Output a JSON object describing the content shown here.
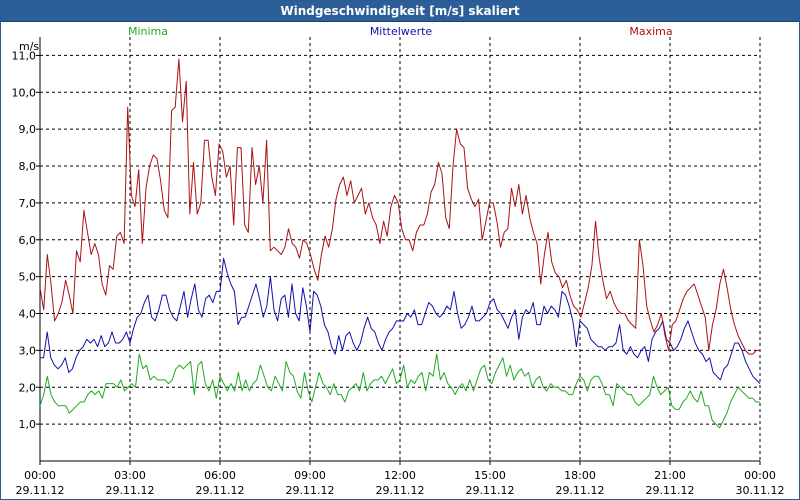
{
  "window": {
    "title": "Windgeschwindigkeit [m/s] skaliert"
  },
  "colors": {
    "minima": "#22aa22",
    "mittelwerte": "#1111aa",
    "maxima": "#aa1111",
    "grid": "#000000",
    "axis_text": "#000000"
  },
  "chart_data": {
    "type": "line",
    "title": "Windgeschwindigkeit [m/s] skaliert",
    "ylabel": "m/s",
    "ylim": [
      0,
      11.5
    ],
    "xlim": [
      0,
      24
    ],
    "yticks": [
      1.0,
      2.0,
      3.0,
      4.0,
      5.0,
      6.0,
      7.0,
      8.0,
      9.0,
      10.0,
      11.0
    ],
    "ytick_labels": [
      "1,0",
      "2,0",
      "3,0",
      "4,0",
      "5,0",
      "6,0",
      "7,0",
      "8,0",
      "9,0",
      "10,0",
      "11,0"
    ],
    "xticks": [
      {
        "hour": 0,
        "time": "00:00",
        "date": "29.11.12"
      },
      {
        "hour": 3,
        "time": "03:00",
        "date": "29.11.12"
      },
      {
        "hour": 6,
        "time": "06:00",
        "date": "29.11.12"
      },
      {
        "hour": 9,
        "time": "09:00",
        "date": "29.11.12"
      },
      {
        "hour": 12,
        "time": "12:00",
        "date": "29.11.12"
      },
      {
        "hour": 15,
        "time": "15:00",
        "date": "29.11.12"
      },
      {
        "hour": 18,
        "time": "18:00",
        "date": "29.11.12"
      },
      {
        "hour": 21,
        "time": "21:00",
        "date": "29.11.12"
      },
      {
        "hour": 24,
        "time": "00:00",
        "date": "30.11.12"
      }
    ],
    "grid": true,
    "step_hours": 0.1667,
    "series": [
      {
        "name": "Minima",
        "key": "minima",
        "values": [
          1.5,
          1.8,
          2.3,
          1.8,
          1.6,
          1.5,
          1.5,
          1.5,
          1.3,
          1.4,
          1.5,
          1.6,
          1.6,
          1.8,
          1.9,
          1.8,
          1.9,
          1.7,
          2.1,
          2.1,
          2.1,
          2.0,
          2.2,
          1.9,
          2.0,
          2.1,
          2.0,
          2.9,
          2.5,
          2.6,
          2.2,
          2.3,
          2.2,
          2.2,
          2.2,
          2.1,
          2.2,
          2.5,
          2.6,
          2.5,
          2.6,
          2.7,
          1.8,
          2.6,
          2.7,
          2.1,
          1.9,
          2.2,
          1.7,
          2.3,
          2.1,
          1.9,
          2.1,
          1.9,
          2.4,
          1.9,
          2.2,
          1.9,
          2.1,
          2.2,
          2.6,
          2.3,
          2.0,
          1.9,
          2.3,
          2.1,
          1.9,
          2.7,
          2.4,
          2.3,
          1.9,
          1.7,
          2.4,
          1.9,
          1.6,
          2.0,
          2.4,
          2.1,
          2.0,
          1.8,
          2.1,
          1.8,
          1.8,
          1.6,
          1.9,
          2.0,
          2.1,
          1.9,
          2.4,
          1.9,
          2.1,
          2.2,
          2.2,
          2.3,
          2.1,
          2.3,
          2.5,
          2.1,
          2.2,
          2.6,
          2.0,
          2.2,
          2.1,
          2.3,
          2.4,
          1.9,
          2.4,
          2.3,
          2.9,
          2.2,
          2.4,
          2.1,
          2.0,
          1.8,
          2.0,
          2.1,
          1.9,
          2.2,
          1.9,
          2.2,
          2.5,
          2.6,
          2.2,
          2.1,
          2.4,
          2.6,
          2.8,
          2.3,
          2.6,
          2.2,
          2.4,
          2.5,
          2.3,
          2.4,
          2.0,
          2.2,
          2.3,
          2.0,
          1.9,
          2.1,
          2.0,
          2.0,
          1.9,
          1.9,
          1.8,
          1.8,
          2.1,
          2.3,
          2.2,
          1.9,
          2.2,
          2.3,
          2.3,
          2.1,
          1.8,
          1.8,
          1.5,
          2.1,
          2.0,
          1.9,
          1.8,
          1.8,
          1.6,
          1.5,
          1.6,
          1.7,
          1.8,
          2.3,
          2.0,
          1.8,
          1.9,
          2.0,
          1.5,
          1.4,
          1.4,
          1.6,
          1.7,
          1.9,
          1.7,
          1.6,
          1.9,
          1.5,
          1.5,
          1.1,
          1.0,
          0.9,
          1.1,
          1.3,
          1.6,
          1.8,
          2.0,
          1.9,
          1.8,
          1.7,
          1.7,
          1.6,
          1.6
        ]
      },
      {
        "name": "Mittelwerte",
        "key": "mittelwerte",
        "values": [
          2.8,
          2.8,
          3.5,
          2.8,
          2.6,
          2.5,
          2.6,
          2.8,
          2.4,
          2.5,
          2.8,
          3.0,
          3.1,
          3.3,
          3.2,
          3.3,
          3.1,
          3.4,
          3.1,
          3.2,
          3.5,
          3.2,
          3.2,
          3.3,
          3.5,
          3.2,
          3.6,
          3.9,
          4.0,
          4.3,
          4.5,
          3.9,
          3.8,
          4.1,
          4.5,
          4.5,
          4.1,
          3.9,
          3.8,
          4.2,
          4.6,
          3.9,
          4.4,
          4.8,
          4.1,
          3.9,
          4.4,
          4.5,
          4.3,
          4.6,
          4.6,
          5.5,
          5.1,
          4.8,
          4.6,
          3.7,
          3.9,
          3.9,
          4.2,
          4.5,
          4.8,
          4.4,
          3.9,
          4.2,
          5.0,
          4.1,
          3.8,
          4.4,
          4.5,
          3.9,
          4.8,
          4.0,
          3.8,
          4.7,
          4.2,
          3.5,
          4.6,
          4.5,
          4.2,
          3.7,
          3.5,
          3.1,
          2.9,
          3.4,
          3.0,
          3.4,
          3.5,
          3.2,
          3.0,
          3.2,
          3.6,
          3.9,
          3.6,
          3.5,
          3.2,
          3.0,
          3.3,
          3.5,
          3.6,
          3.8,
          3.8,
          3.8,
          4.0,
          3.9,
          4.1,
          3.7,
          3.7,
          4.0,
          4.3,
          4.2,
          4.0,
          3.9,
          4.0,
          4.2,
          4.1,
          4.6,
          4.0,
          3.6,
          3.7,
          3.9,
          4.2,
          3.8,
          3.8,
          3.9,
          4.0,
          4.3,
          4.4,
          4.1,
          4.0,
          3.8,
          3.6,
          3.9,
          4.1,
          3.3,
          3.9,
          4.1,
          4.0,
          4.3,
          3.7,
          3.7,
          4.2,
          4.0,
          4.2,
          4.1,
          3.9,
          4.6,
          4.5,
          4.2,
          3.8,
          3.1,
          3.8,
          3.7,
          3.6,
          3.3,
          3.2,
          3.1,
          3.1,
          3.0,
          3.1,
          3.1,
          3.2,
          3.7,
          3.0,
          2.9,
          3.1,
          2.9,
          2.8,
          3.0,
          3.1,
          2.7,
          3.3,
          3.5,
          3.6,
          3.8,
          3.3,
          3.2,
          3.0,
          3.1,
          3.3,
          3.6,
          3.8,
          3.5,
          3.2,
          3.0,
          2.9,
          2.7,
          2.8,
          2.4,
          2.3,
          2.2,
          2.5,
          2.6,
          2.9,
          3.2,
          3.2,
          3.0,
          2.7,
          2.5,
          2.3,
          2.2,
          2.1
        ]
      },
      {
        "name": "Maxima",
        "key": "maxima",
        "values": [
          4.7,
          4.1,
          5.6,
          4.8,
          3.8,
          4.0,
          4.3,
          4.9,
          4.5,
          4.0,
          5.7,
          5.4,
          6.8,
          6.2,
          5.6,
          5.9,
          5.6,
          4.8,
          4.5,
          5.3,
          5.2,
          6.1,
          6.2,
          5.9,
          9.6,
          7.2,
          6.9,
          7.9,
          5.9,
          7.4,
          8.0,
          8.3,
          8.2,
          7.6,
          6.8,
          6.6,
          9.5,
          9.6,
          10.9,
          9.2,
          10.3,
          6.7,
          8.1,
          6.7,
          7.0,
          8.7,
          8.7,
          7.7,
          7.2,
          8.6,
          8.4,
          7.7,
          8.0,
          6.4,
          8.5,
          8.5,
          6.4,
          6.2,
          8.5,
          7.5,
          8.0,
          7.0,
          8.7,
          5.7,
          5.8,
          5.7,
          5.6,
          5.8,
          6.3,
          5.9,
          5.8,
          5.5,
          6.0,
          5.9,
          5.6,
          5.2,
          4.9,
          5.6,
          6.1,
          5.8,
          6.3,
          7.1,
          7.5,
          7.7,
          7.2,
          7.6,
          7.0,
          7.2,
          7.4,
          6.7,
          7.0,
          6.6,
          6.4,
          5.9,
          6.5,
          6.1,
          6.9,
          7.2,
          7.0,
          6.3,
          6.0,
          6.0,
          5.7,
          6.2,
          6.4,
          6.4,
          6.7,
          7.3,
          7.5,
          8.1,
          7.8,
          6.6,
          6.3,
          8.0,
          9.0,
          8.6,
          8.5,
          7.4,
          7.1,
          6.9,
          7.1,
          6.0,
          6.5,
          7.0,
          7.0,
          6.5,
          5.8,
          6.2,
          6.3,
          7.4,
          6.9,
          7.5,
          6.7,
          7.2,
          6.6,
          6.2,
          5.9,
          4.8,
          5.6,
          6.2,
          5.4,
          5.1,
          5.0,
          4.7,
          4.9,
          4.5,
          4.2,
          4.1,
          3.9,
          4.3,
          4.7,
          5.3,
          6.5,
          5.5,
          4.9,
          4.4,
          4.6,
          4.3,
          4.1,
          4.0,
          4.0,
          3.8,
          3.7,
          3.6,
          6.0,
          5.3,
          4.2,
          3.8,
          3.5,
          3.7,
          4.0,
          3.4,
          3.0,
          3.7,
          3.8,
          4.1,
          4.4,
          4.6,
          4.7,
          4.8,
          4.5,
          4.2,
          3.9,
          3.0,
          3.7,
          4.1,
          4.8,
          5.2,
          4.7,
          4.1,
          3.7,
          3.4,
          3.2,
          3.0,
          2.9,
          2.9,
          3.0,
          3.0
        ]
      }
    ]
  }
}
